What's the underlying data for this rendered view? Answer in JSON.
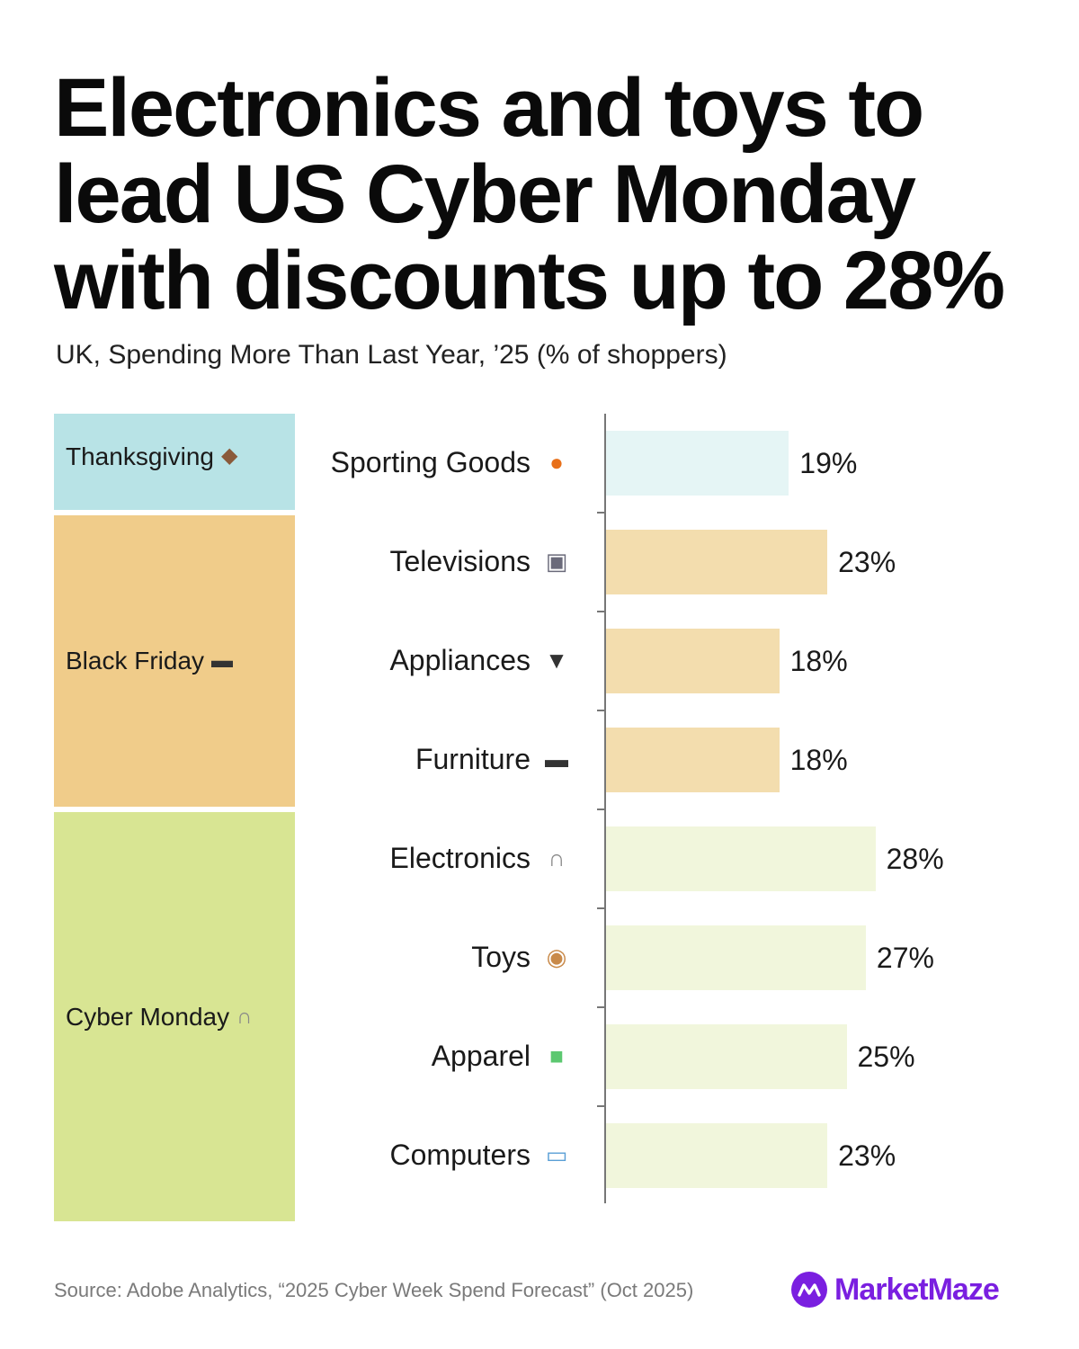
{
  "header": {
    "title_lines": [
      "Electronics and toys to",
      "lead US Cyber Monday",
      "with discounts up to 28%"
    ],
    "subtitle": "UK, Spending More Than Last Year, ’25 (% of shoppers)"
  },
  "groups": [
    {
      "label": "Thanksgiving",
      "icon": "turkey-icon",
      "color": "#b8e3e6",
      "count": 1
    },
    {
      "label": "Black Friday",
      "icon": "sofa-icon",
      "color": "#f0cc8a",
      "count": 3
    },
    {
      "label": "Cyber Monday",
      "icon": "headphones-icon",
      "color": "#d8e593",
      "count": 4
    }
  ],
  "chart_data": {
    "type": "bar",
    "orientation": "horizontal",
    "categories": [
      "Sporting Goods",
      "Televisions",
      "Appliances",
      "Furniture",
      "Electronics",
      "Toys",
      "Apparel",
      "Computers"
    ],
    "values": [
      19,
      23,
      18,
      18,
      28,
      27,
      25,
      23
    ],
    "value_labels": [
      "19%",
      "23%",
      "18%",
      "18%",
      "28%",
      "27%",
      "25%",
      "23%"
    ],
    "category_icons": [
      "basketball-icon",
      "television-icon",
      "plug-icon",
      "sofa-icon",
      "headphones-icon",
      "teddy-bear-icon",
      "tshirt-icon",
      "laptop-icon"
    ],
    "category_groups": [
      "Thanksgiving",
      "Black Friday",
      "Black Friday",
      "Black Friday",
      "Cyber Monday",
      "Cyber Monday",
      "Cyber Monday",
      "Cyber Monday"
    ],
    "bar_colors": [
      "#e5f5f5",
      "#f3ddae",
      "#f3ddae",
      "#f3ddae",
      "#f1f6dc",
      "#f1f6dc",
      "#f1f6dc",
      "#f1f6dc"
    ],
    "xlim": [
      0,
      28
    ],
    "title": "",
    "xlabel": "",
    "ylabel": ""
  },
  "footer": {
    "source": "Source: Adobe Analytics, “2025 Cyber Week Spend Forecast” (Oct 2025)",
    "brand": "MarketMaze",
    "brand_color": "#7a1fe0"
  }
}
